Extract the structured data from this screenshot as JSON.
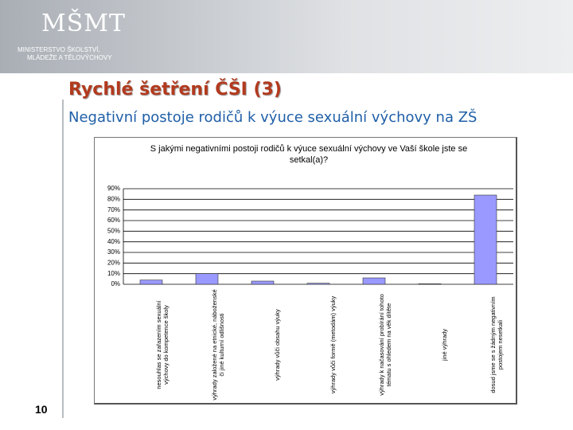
{
  "header": {
    "logo": "MŠMT",
    "ministry_line1": "MINISTERSTVO ŠKOLSTVÍ,",
    "ministry_line2": "MLÁDEŽE A TĚLOVÝCHOVY"
  },
  "slide_title": "Rychlé šetření ČŠI (3)",
  "slide_subtitle": "Negativní postoje rodičů k výuce sexuální výchovy na ZŠ",
  "page_number": "10",
  "chart_data": {
    "type": "bar",
    "title": "S jakými negativními postoji rodičů k výuce sexuální výchovy ve Vaší škole jste se setkal(a)?",
    "categories": [
      "nesouhlas se zařazením sexuální výchovy do kompetence školy",
      "výhrady založené na etnické, náboženské či jiné kulturní odlišnosti",
      "výhrady vůči obsahu výuky",
      "výhrady vůči formě (metodám) výuky",
      "výhrady k načasování probírání tohoto tématu s ohledem na věk dítěte",
      "jiné výhrady",
      "dosud jsme se s žádným negativním postojem nesetkali"
    ],
    "values": [
      4,
      10,
      3,
      1,
      6,
      0.5,
      84
    ],
    "color": "#9999ff",
    "ylim": [
      0,
      90
    ],
    "yticks": [
      {
        "value": 0,
        "label": "0%"
      },
      {
        "value": 10,
        "label": "10%"
      },
      {
        "value": 20,
        "label": "20%"
      },
      {
        "value": 30,
        "label": "30%"
      },
      {
        "value": 40,
        "label": "40%"
      },
      {
        "value": 50,
        "label": "50%"
      },
      {
        "value": 60,
        "label": "60%"
      },
      {
        "value": 70,
        "label": "70%"
      },
      {
        "value": 80,
        "label": "80%"
      },
      {
        "value": 90,
        "label": "90%"
      }
    ],
    "grid": true
  }
}
